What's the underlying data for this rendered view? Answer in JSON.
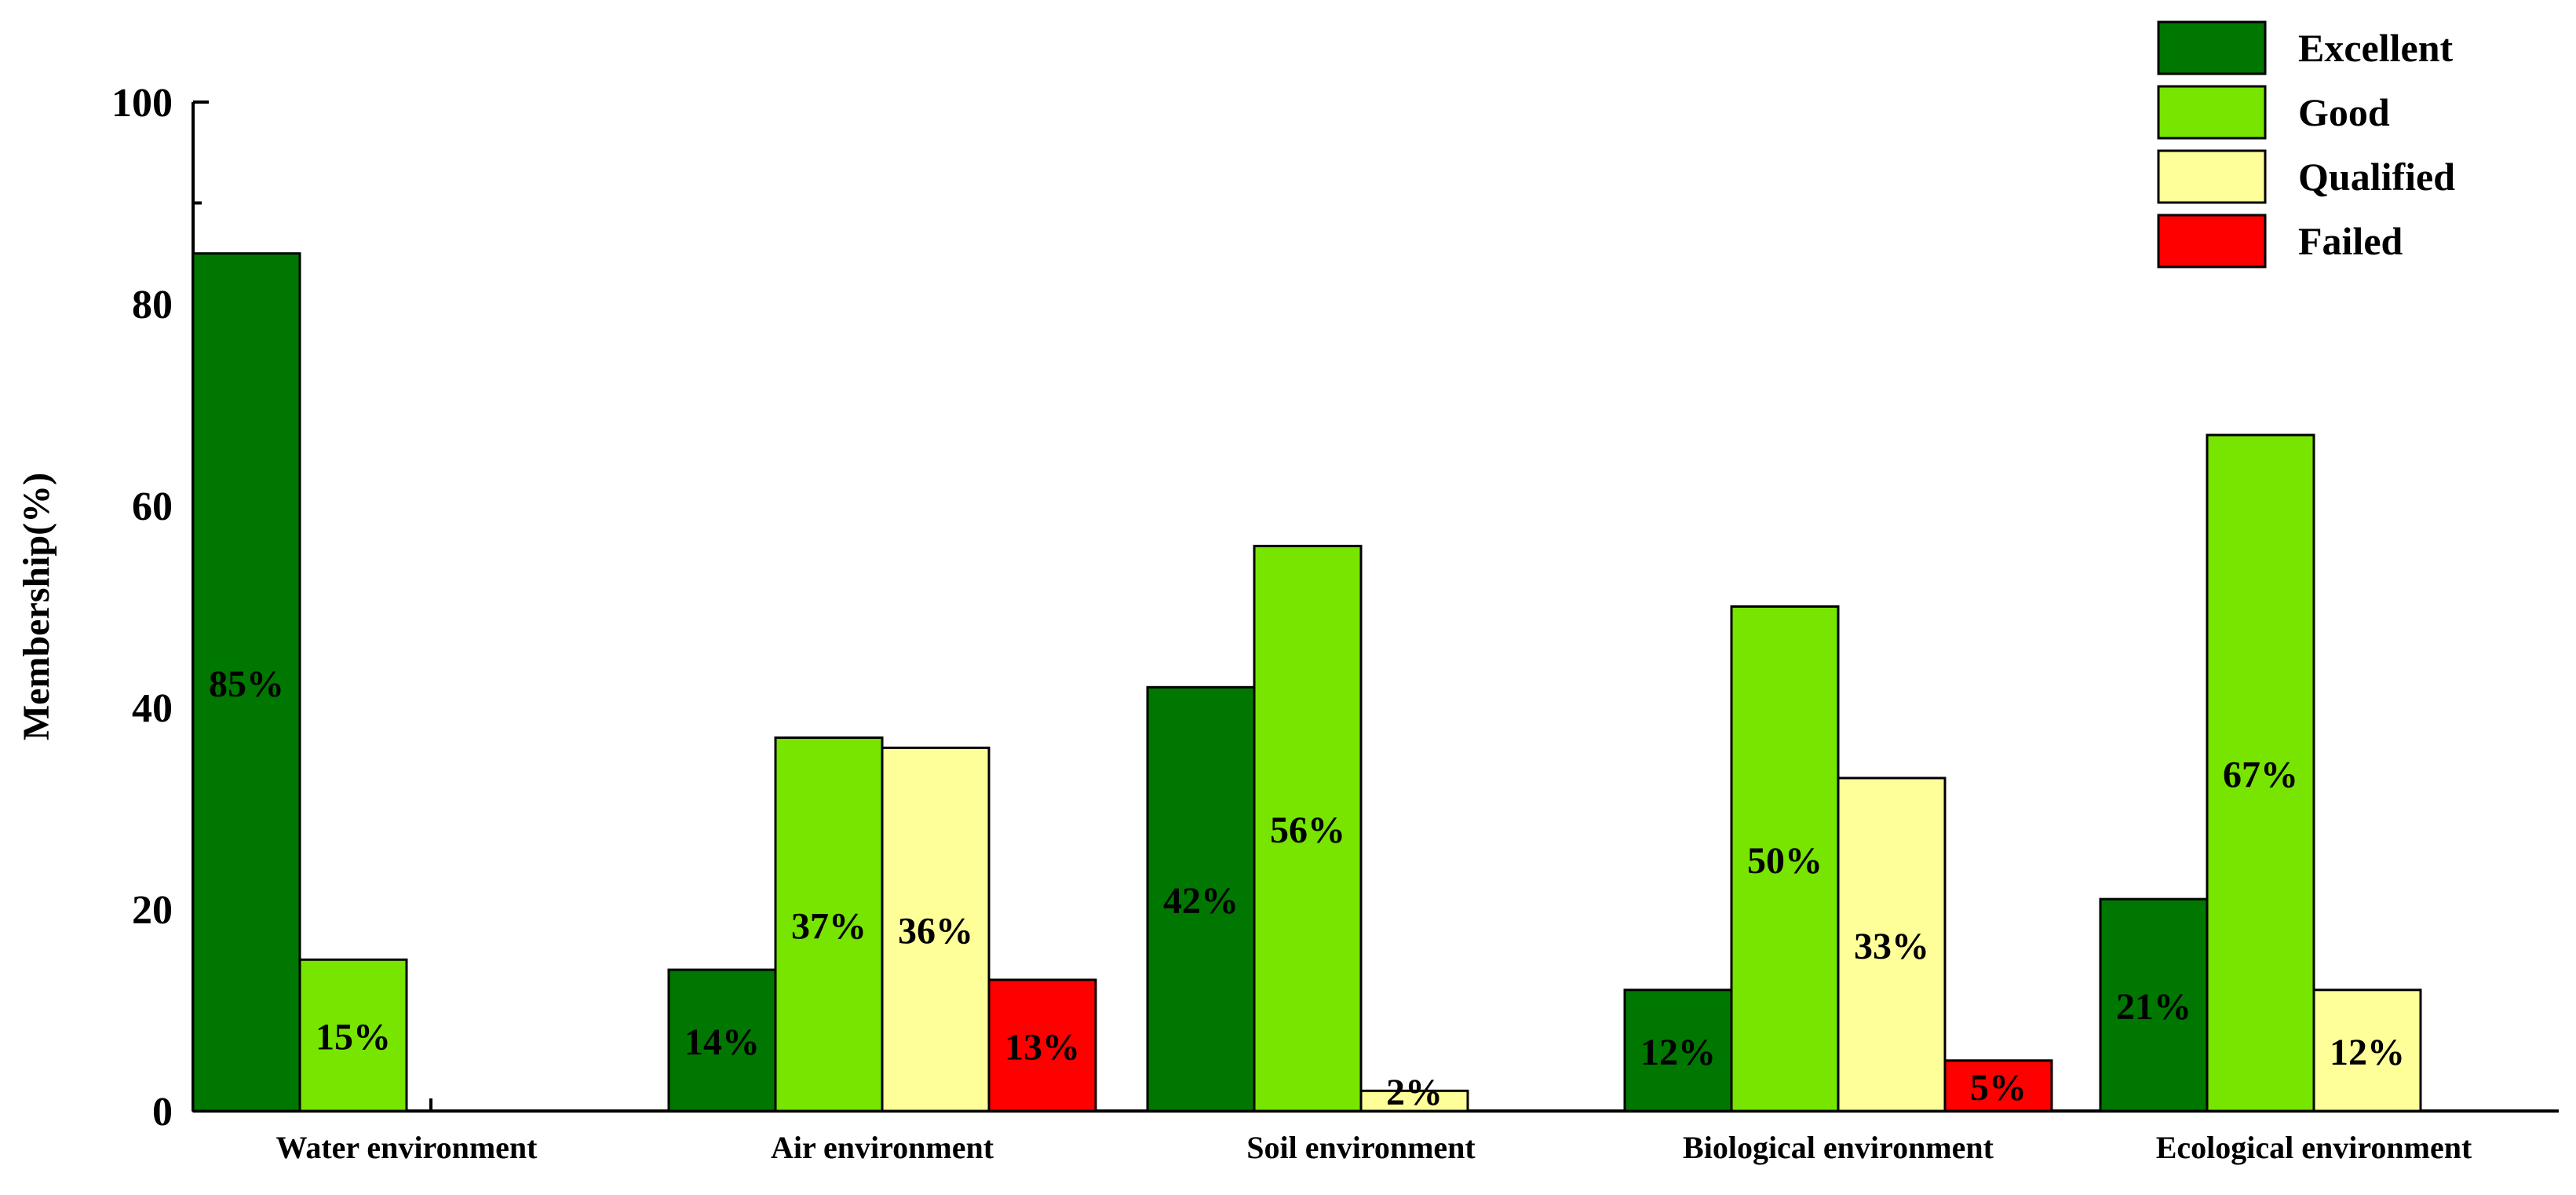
{
  "chart_data": {
    "type": "bar",
    "title": "",
    "xlabel": "",
    "ylabel": "Membership(%)",
    "ylim": [
      0,
      100
    ],
    "yticks": [
      0,
      20,
      40,
      60,
      80,
      100
    ],
    "grid": false,
    "legend_position": "top-right",
    "categories": [
      "Water environment",
      "Air environment",
      "Soil environment",
      "Biological environment",
      "Ecological environment"
    ],
    "series": [
      {
        "name": "Excellent",
        "color": "#007700",
        "values": [
          85,
          14,
          42,
          12,
          21
        ],
        "labels": [
          "85%",
          "14%",
          "42%",
          "12%",
          "21%"
        ]
      },
      {
        "name": "Good",
        "color": "#77E500",
        "values": [
          15,
          37,
          56,
          50,
          67
        ],
        "labels": [
          "15%",
          "37%",
          "56%",
          "50%",
          "67%"
        ]
      },
      {
        "name": "Qualified",
        "color": "#FFFF99",
        "values": [
          0,
          36,
          2,
          33,
          12
        ],
        "labels": [
          "",
          "36%",
          "2%",
          "33%",
          "12%"
        ]
      },
      {
        "name": "Failed",
        "color": "#FF0000",
        "values": [
          0,
          13,
          0,
          5,
          0
        ],
        "labels": [
          "",
          "13%",
          "",
          "5%",
          ""
        ]
      }
    ]
  }
}
